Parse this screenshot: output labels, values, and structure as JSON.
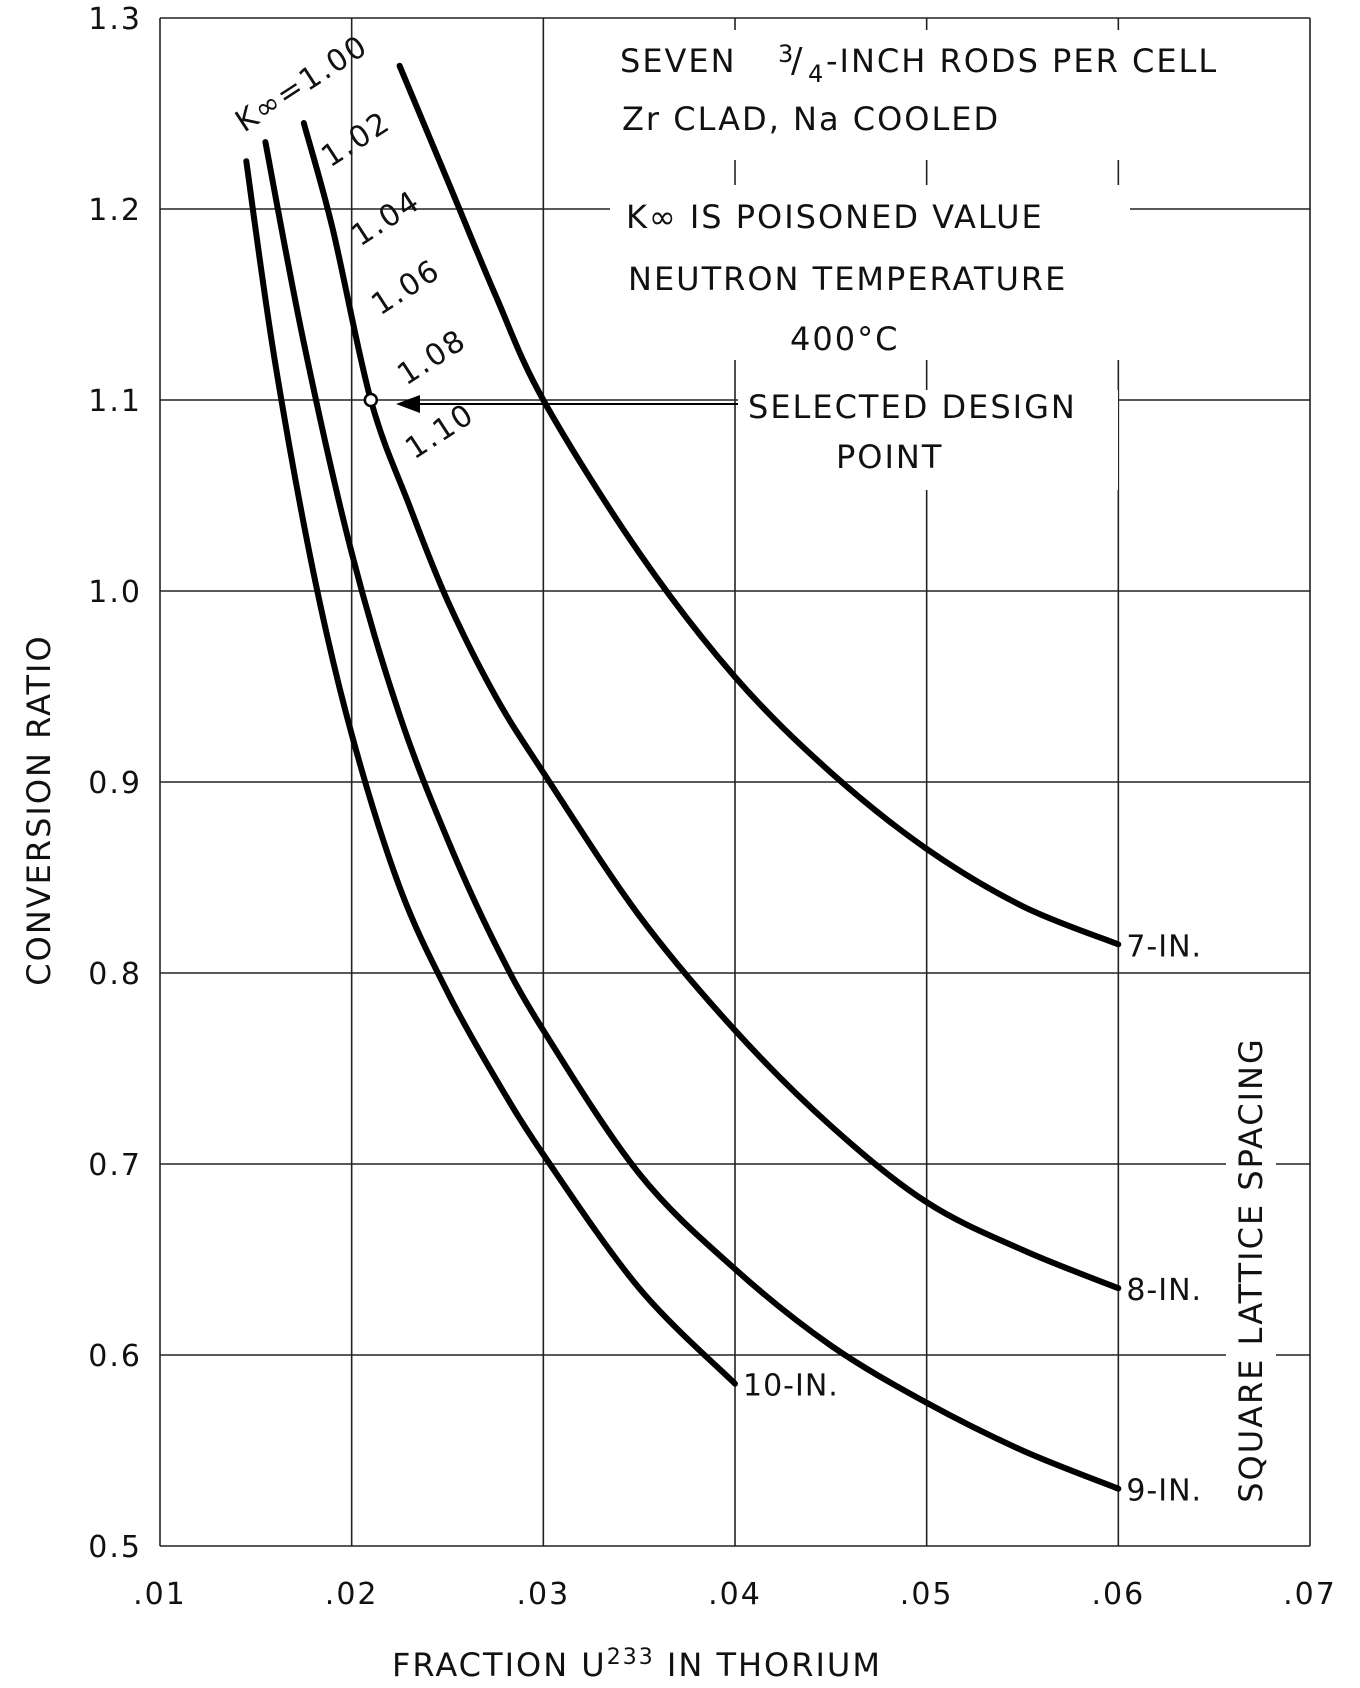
{
  "chart_data": {
    "type": "line",
    "title": "",
    "xlabel": "FRACTION U",
    "xlabel_superscript": "233",
    "xlabel_suffix": " IN THORIUM",
    "ylabel": "CONVERSION RATIO",
    "xlim": [
      0.01,
      0.07
    ],
    "ylim": [
      0.5,
      1.3
    ],
    "x_ticks": [
      0.01,
      0.02,
      0.03,
      0.04,
      0.05,
      0.06,
      0.07
    ],
    "x_tick_labels": [
      ".01",
      ".02",
      ".03",
      ".04",
      ".05",
      ".06",
      ".07"
    ],
    "y_ticks": [
      0.5,
      0.6,
      0.7,
      0.8,
      0.9,
      1.0,
      1.1,
      1.2,
      1.3
    ],
    "y_tick_labels": [
      "0.5",
      "0.6",
      "0.7",
      "0.8",
      "0.9",
      "1.0",
      "1.1",
      "1.2",
      "1.3"
    ],
    "grid": true,
    "series": [
      {
        "name": "7-IN.",
        "x": [
          0.0225,
          0.025,
          0.0275,
          0.03,
          0.035,
          0.04,
          0.045,
          0.05,
          0.055,
          0.06
        ],
        "y": [
          1.275,
          1.215,
          1.155,
          1.1,
          1.02,
          0.955,
          0.905,
          0.865,
          0.835,
          0.815
        ]
      },
      {
        "name": "8-IN.",
        "x": [
          0.0175,
          0.019,
          0.021,
          0.023,
          0.025,
          0.0275,
          0.03,
          0.035,
          0.04,
          0.045,
          0.05,
          0.055,
          0.06
        ],
        "y": [
          1.245,
          1.19,
          1.1,
          1.045,
          0.995,
          0.945,
          0.905,
          0.83,
          0.77,
          0.72,
          0.68,
          0.655,
          0.635
        ]
      },
      {
        "name": "9-IN.",
        "x": [
          0.0155,
          0.0175,
          0.02,
          0.0225,
          0.025,
          0.0275,
          0.03,
          0.035,
          0.04,
          0.045,
          0.05,
          0.055,
          0.06
        ],
        "y": [
          1.235,
          1.13,
          1.02,
          0.935,
          0.87,
          0.815,
          0.77,
          0.695,
          0.645,
          0.605,
          0.575,
          0.55,
          0.53
        ]
      },
      {
        "name": "10-IN.",
        "x": [
          0.0145,
          0.016,
          0.018,
          0.02,
          0.0225,
          0.025,
          0.0275,
          0.03,
          0.035,
          0.04
        ],
        "y": [
          1.225,
          1.12,
          1.01,
          0.925,
          0.845,
          0.79,
          0.745,
          0.705,
          0.635,
          0.585
        ]
      }
    ],
    "k_inf_labels": [
      "K∞=1.00",
      "1.02",
      "1.04",
      "1.06",
      "1.08",
      "1.10"
    ],
    "annotations": {
      "info_lines": [
        "SEVEN",
        "-INCH RODS PER CELL",
        "Zr CLAD, Na COOLED",
        "K∞ IS POISONED VALUE",
        "NEUTRON TEMPERATURE",
        "400°C"
      ],
      "fraction": {
        "numerator": "3",
        "denominator": "4"
      },
      "design_point_lines": [
        "SELECTED DESIGN",
        "POINT"
      ],
      "design_point": {
        "x": 0.021,
        "y": 1.1
      },
      "side_label": "SQUARE LATTICE SPACING"
    }
  }
}
